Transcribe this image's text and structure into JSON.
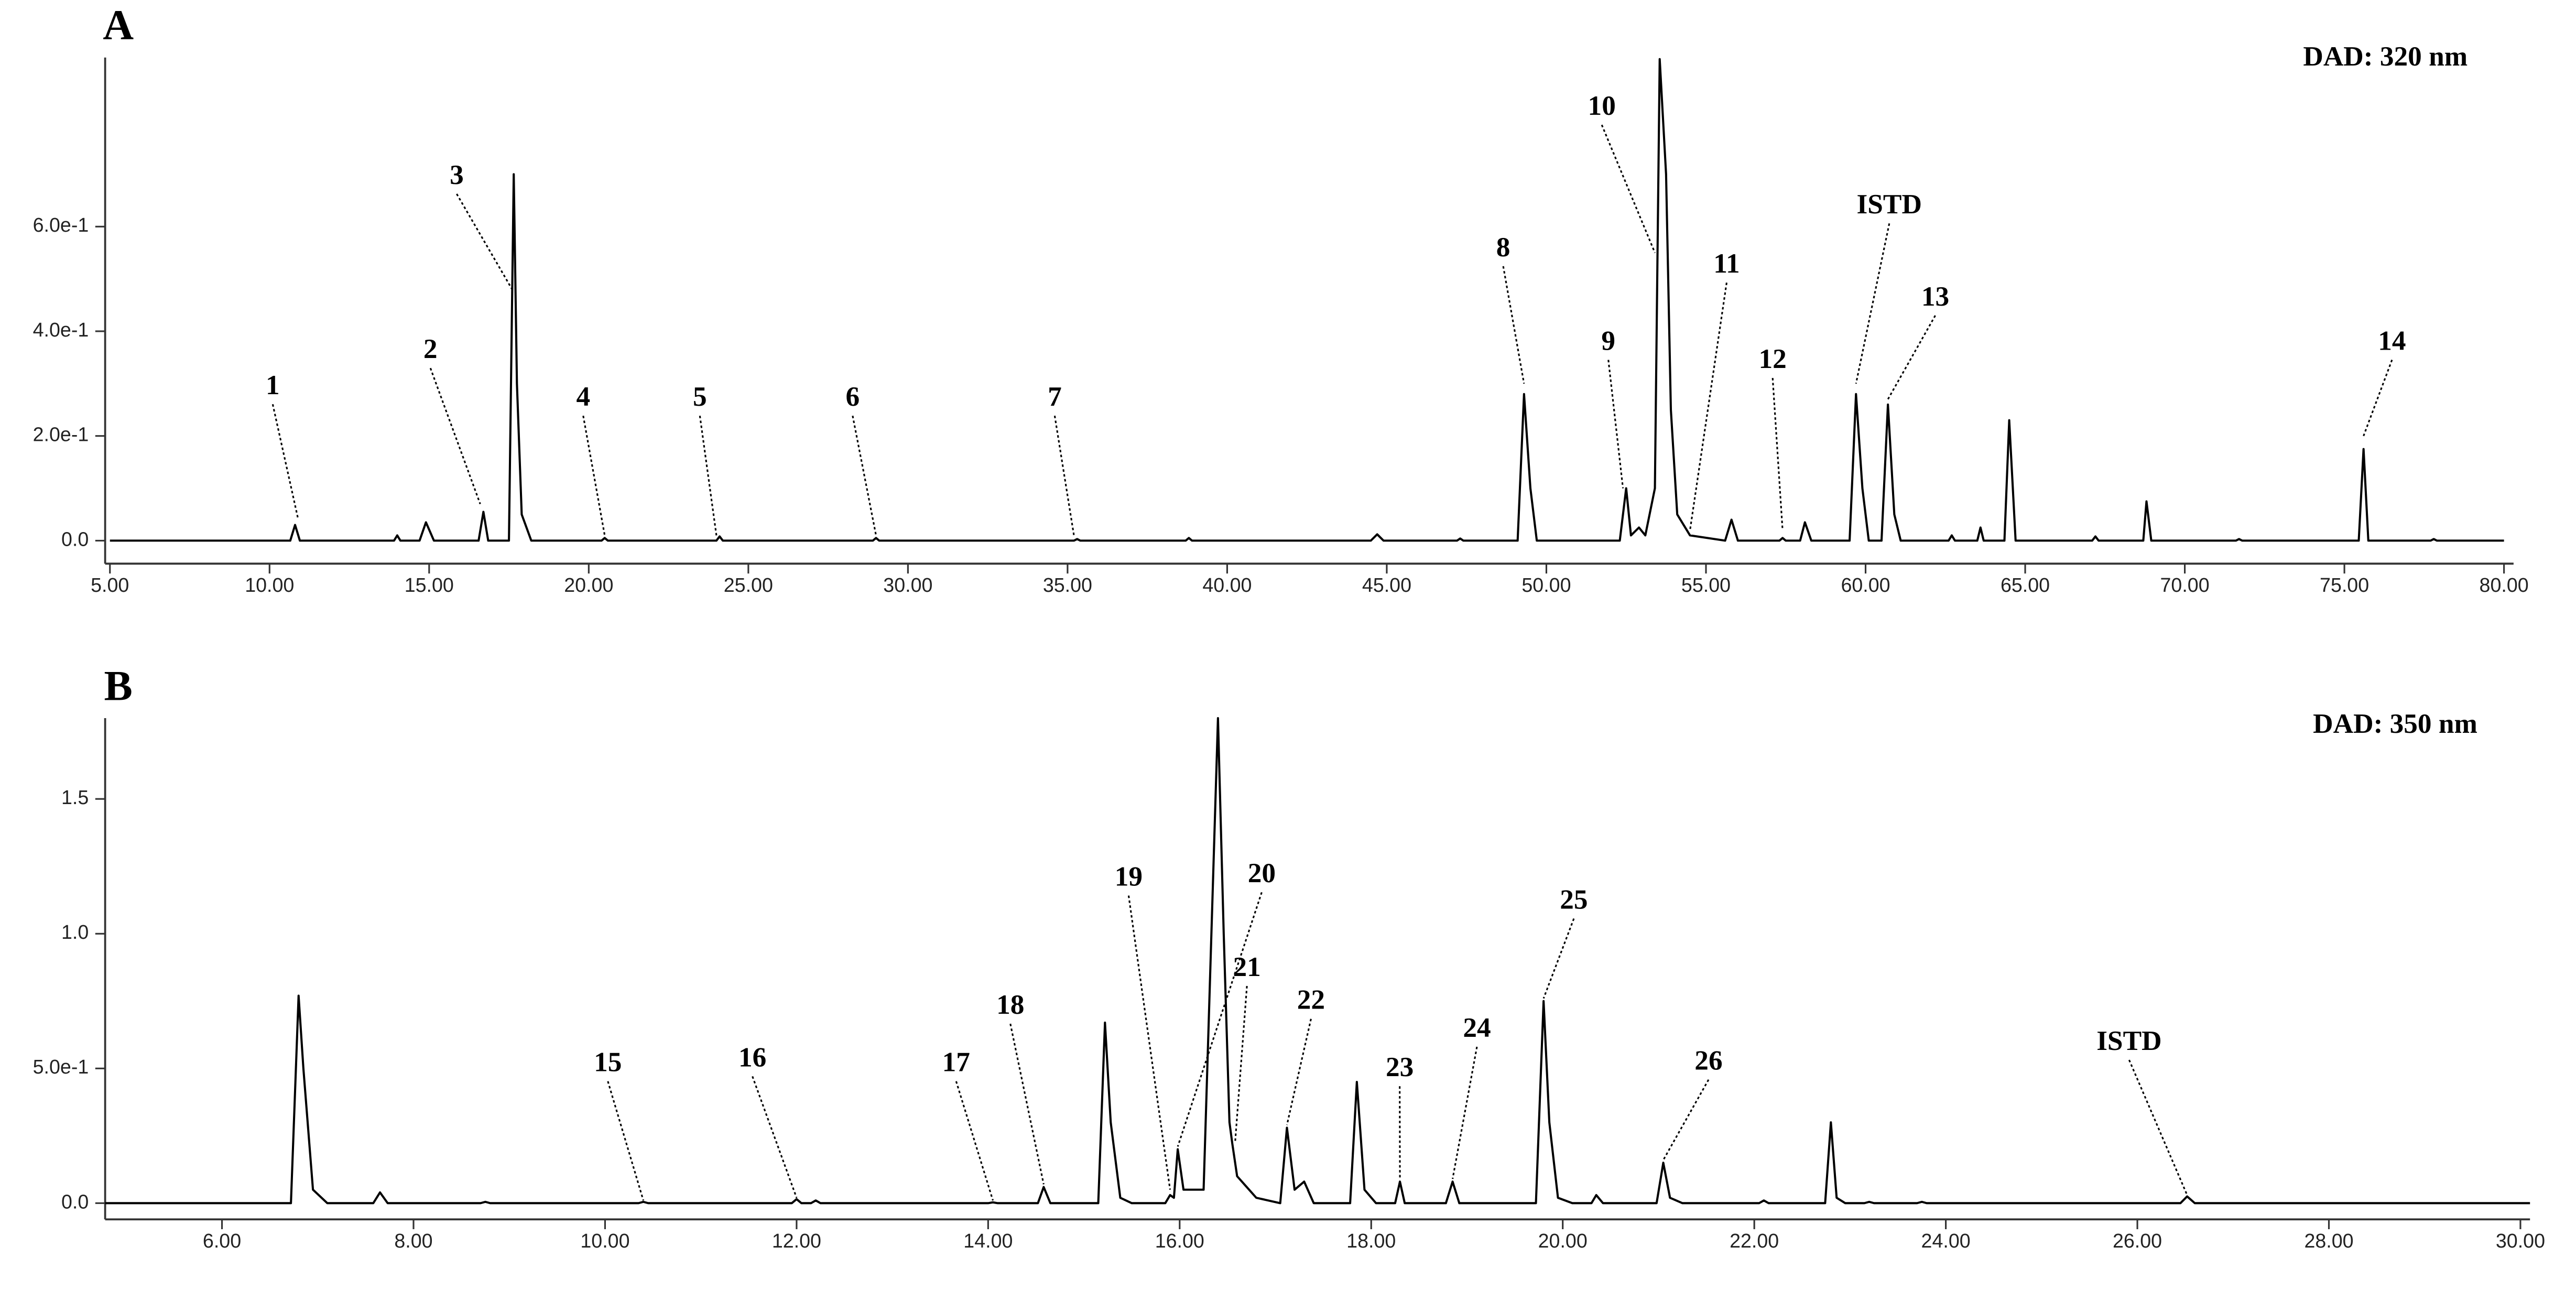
{
  "chart_data": [
    {
      "type": "line",
      "panel_label": "A",
      "label": "DAD: 320 nm",
      "color": "#000000",
      "xlim": [
        4.85,
        80.3
      ],
      "ylim": [
        -0.044,
        0.923
      ],
      "xticks": [
        {
          "value": 5,
          "label": "5.00"
        },
        {
          "value": 10,
          "label": "10.00"
        },
        {
          "value": 15,
          "label": "15.00"
        },
        {
          "value": 20,
          "label": "20.00"
        },
        {
          "value": 25,
          "label": "25.00"
        },
        {
          "value": 30,
          "label": "30.00"
        },
        {
          "value": 35,
          "label": "35.00"
        },
        {
          "value": 40,
          "label": "40.00"
        },
        {
          "value": 45,
          "label": "45.00"
        },
        {
          "value": 50,
          "label": "50.00"
        },
        {
          "value": 55,
          "label": "55.00"
        },
        {
          "value": 60,
          "label": "60.00"
        },
        {
          "value": 65,
          "label": "65.00"
        },
        {
          "value": 70,
          "label": "70.00"
        },
        {
          "value": 75,
          "label": "75.00"
        },
        {
          "value": 80,
          "label": "80.00"
        }
      ],
      "yticks": [
        {
          "value": 0,
          "label": "0.0"
        },
        {
          "value": 0.2,
          "label": "2.0e-1"
        },
        {
          "value": 0.4,
          "label": "4.0e-1"
        },
        {
          "value": 0.6,
          "label": "6.0e-1"
        }
      ],
      "x": [
        5.0,
        10.65,
        10.8,
        10.95,
        13.9,
        14.0,
        14.1,
        14.7,
        14.9,
        15.15,
        16.55,
        16.7,
        16.85,
        17.5,
        17.65,
        17.75,
        17.9,
        18.2,
        20.4,
        20.5,
        20.6,
        24.0,
        24.1,
        24.2,
        28.9,
        29.0,
        29.1,
        35.2,
        35.3,
        35.4,
        38.7,
        38.8,
        38.9,
        44.5,
        44.7,
        44.9,
        47.2,
        47.3,
        47.4,
        49.1,
        49.3,
        49.5,
        49.7,
        52.3,
        52.5,
        52.65,
        52.9,
        53.1,
        53.4,
        53.55,
        53.75,
        53.9,
        54.1,
        54.5,
        55.6,
        55.8,
        56.0,
        57.3,
        57.4,
        57.5,
        57.95,
        58.1,
        58.3,
        59.5,
        59.7,
        59.9,
        60.1,
        60.5,
        60.7,
        60.9,
        61.1,
        62.6,
        62.7,
        62.8,
        63.5,
        63.6,
        63.7,
        64.35,
        64.5,
        64.7,
        67.1,
        67.2,
        67.3,
        68.7,
        68.8,
        68.95,
        71.6,
        71.7,
        71.8,
        75.45,
        75.6,
        75.75,
        77.7,
        77.8,
        77.9,
        80.0
      ],
      "values": [
        0,
        0,
        0.03,
        0,
        0,
        0.01,
        0,
        0,
        0.035,
        0,
        0,
        0.055,
        0,
        0,
        0.7,
        0.3,
        0.05,
        0,
        0,
        0.005,
        0,
        0,
        0.008,
        0,
        0,
        0.005,
        0,
        0,
        0.003,
        0,
        0,
        0.005,
        0,
        0,
        0.012,
        0,
        0,
        0.004,
        0,
        0,
        0.28,
        0.1,
        0,
        0,
        0.1,
        0.01,
        0.025,
        0.01,
        0.1,
        0.92,
        0.7,
        0.25,
        0.05,
        0.01,
        0,
        0.04,
        0,
        0,
        0.005,
        0,
        0,
        0.035,
        0,
        0,
        0.28,
        0.1,
        0,
        0,
        0.26,
        0.05,
        0,
        0,
        0.01,
        0,
        0,
        0.025,
        0,
        0,
        0.23,
        0,
        0,
        0.008,
        0,
        0,
        0.075,
        0,
        0,
        0.003,
        0,
        0,
        0.175,
        0,
        0,
        0.003,
        0,
        0
      ],
      "annotations": [
        {
          "text": "1",
          "x": 10.9,
          "y": 0.04
        },
        {
          "text": "2",
          "x": 16.6,
          "y": 0.07
        },
        {
          "text": "3",
          "x": 17.6,
          "y": 0.48
        },
        {
          "text": "4",
          "x": 20.5,
          "y": 0.01
        },
        {
          "text": "5",
          "x": 24.0,
          "y": 0.01
        },
        {
          "text": "6",
          "x": 29.0,
          "y": 0.01
        },
        {
          "text": "7",
          "x": 35.2,
          "y": 0.01
        },
        {
          "text": "8",
          "x": 49.3,
          "y": 0.3
        },
        {
          "text": "9",
          "x": 52.4,
          "y": 0.1
        },
        {
          "text": "10",
          "x": 53.4,
          "y": 0.55
        },
        {
          "text": "11",
          "x": 54.5,
          "y": 0.02
        },
        {
          "text": "12",
          "x": 57.4,
          "y": 0.02
        },
        {
          "text": "ISTD",
          "x": 59.7,
          "y": 0.3
        },
        {
          "text": "13",
          "x": 60.7,
          "y": 0.27
        },
        {
          "text": "14",
          "x": 75.6,
          "y": 0.2
        }
      ]
    },
    {
      "type": "line",
      "panel_label": "B",
      "label": "DAD: 350 nm",
      "color": "#000000",
      "xlim": [
        4.78,
        30.1
      ],
      "ylim": [
        -0.06,
        1.8
      ],
      "xticks": [
        {
          "value": 6,
          "label": "6.00"
        },
        {
          "value": 8,
          "label": "8.00"
        },
        {
          "value": 10,
          "label": "10.00"
        },
        {
          "value": 12,
          "label": "12.00"
        },
        {
          "value": 14,
          "label": "14.00"
        },
        {
          "value": 16,
          "label": "16.00"
        },
        {
          "value": 18,
          "label": "18.00"
        },
        {
          "value": 20,
          "label": "20.00"
        },
        {
          "value": 22,
          "label": "22.00"
        },
        {
          "value": 24,
          "label": "24.00"
        },
        {
          "value": 26,
          "label": "26.00"
        },
        {
          "value": 28,
          "label": "28.00"
        },
        {
          "value": 30,
          "label": "30.00"
        }
      ],
      "yticks": [
        {
          "value": 0,
          "label": "0.0"
        },
        {
          "value": 0.5,
          "label": "5.0e-1"
        },
        {
          "value": 1,
          "label": "1.0"
        },
        1.5
      ],
      "x": [
        4.78,
        6.72,
        6.8,
        6.85,
        6.95,
        7.1,
        7.58,
        7.65,
        7.73,
        8.7,
        8.75,
        8.8,
        10.35,
        10.4,
        10.45,
        11.95,
        12.0,
        12.05,
        12.15,
        12.2,
        12.25,
        14.0,
        14.05,
        14.1,
        14.52,
        14.58,
        14.65,
        15.15,
        15.22,
        15.28,
        15.38,
        15.5,
        15.85,
        15.9,
        15.94,
        15.98,
        16.04,
        16.25,
        16.4,
        16.46,
        16.52,
        16.55,
        16.6,
        16.7,
        16.8,
        17.05,
        17.12,
        17.2,
        17.3,
        17.4,
        17.78,
        17.85,
        17.93,
        18.05,
        18.25,
        18.3,
        18.35,
        18.78,
        18.85,
        18.92,
        19.72,
        19.8,
        19.86,
        19.95,
        20.1,
        20.3,
        20.35,
        20.42,
        20.98,
        21.05,
        21.12,
        21.25,
        22.05,
        22.1,
        22.15,
        22.74,
        22.8,
        22.86,
        22.95,
        23.15,
        23.2,
        23.25,
        23.7,
        23.75,
        23.8,
        26.45,
        26.52,
        26.6,
        30.1
      ],
      "values": [
        0,
        0,
        0.77,
        0.5,
        0.05,
        0,
        0,
        0.04,
        0,
        0,
        0.005,
        0,
        0,
        0.005,
        0,
        0,
        0.015,
        0,
        0,
        0.01,
        0,
        0,
        0.003,
        0,
        0,
        0.06,
        0,
        0,
        0.67,
        0.3,
        0.02,
        0,
        0,
        0.03,
        0.02,
        0.2,
        0.05,
        0.05,
        1.8,
        1.0,
        0.3,
        0.22,
        0.1,
        0.06,
        0.02,
        0,
        0.28,
        0.05,
        0.08,
        0,
        0,
        0.45,
        0.05,
        0,
        0,
        0.08,
        0,
        0,
        0.08,
        0,
        0,
        0.75,
        0.3,
        0.02,
        0,
        0,
        0.03,
        0,
        0,
        0.15,
        0.02,
        0,
        0,
        0.01,
        0,
        0,
        0.3,
        0.02,
        0,
        0,
        0.005,
        0,
        0,
        0.005,
        0,
        0,
        0.025,
        0,
        0
      ],
      "annotations": [
        {
          "text": "15",
          "x": 10.4,
          "y": 0.01
        },
        {
          "text": "16",
          "x": 12.0,
          "y": 0.02
        },
        {
          "text": "17",
          "x": 14.05,
          "y": 0.01
        },
        {
          "text": "18",
          "x": 14.58,
          "y": 0.07
        },
        {
          "text": "19",
          "x": 15.9,
          "y": 0.05
        },
        {
          "text": "20",
          "x": 15.98,
          "y": 0.21
        },
        {
          "text": "21",
          "x": 16.58,
          "y": 0.23
        },
        {
          "text": "22",
          "x": 17.12,
          "y": 0.29
        },
        {
          "text": "23",
          "x": 18.3,
          "y": 0.09
        },
        {
          "text": "24",
          "x": 18.85,
          "y": 0.09
        },
        {
          "text": "25",
          "x": 19.8,
          "y": 0.76
        },
        {
          "text": "26",
          "x": 21.05,
          "y": 0.16
        },
        {
          "text": "ISTD",
          "x": 26.52,
          "y": 0.03
        }
      ]
    }
  ]
}
